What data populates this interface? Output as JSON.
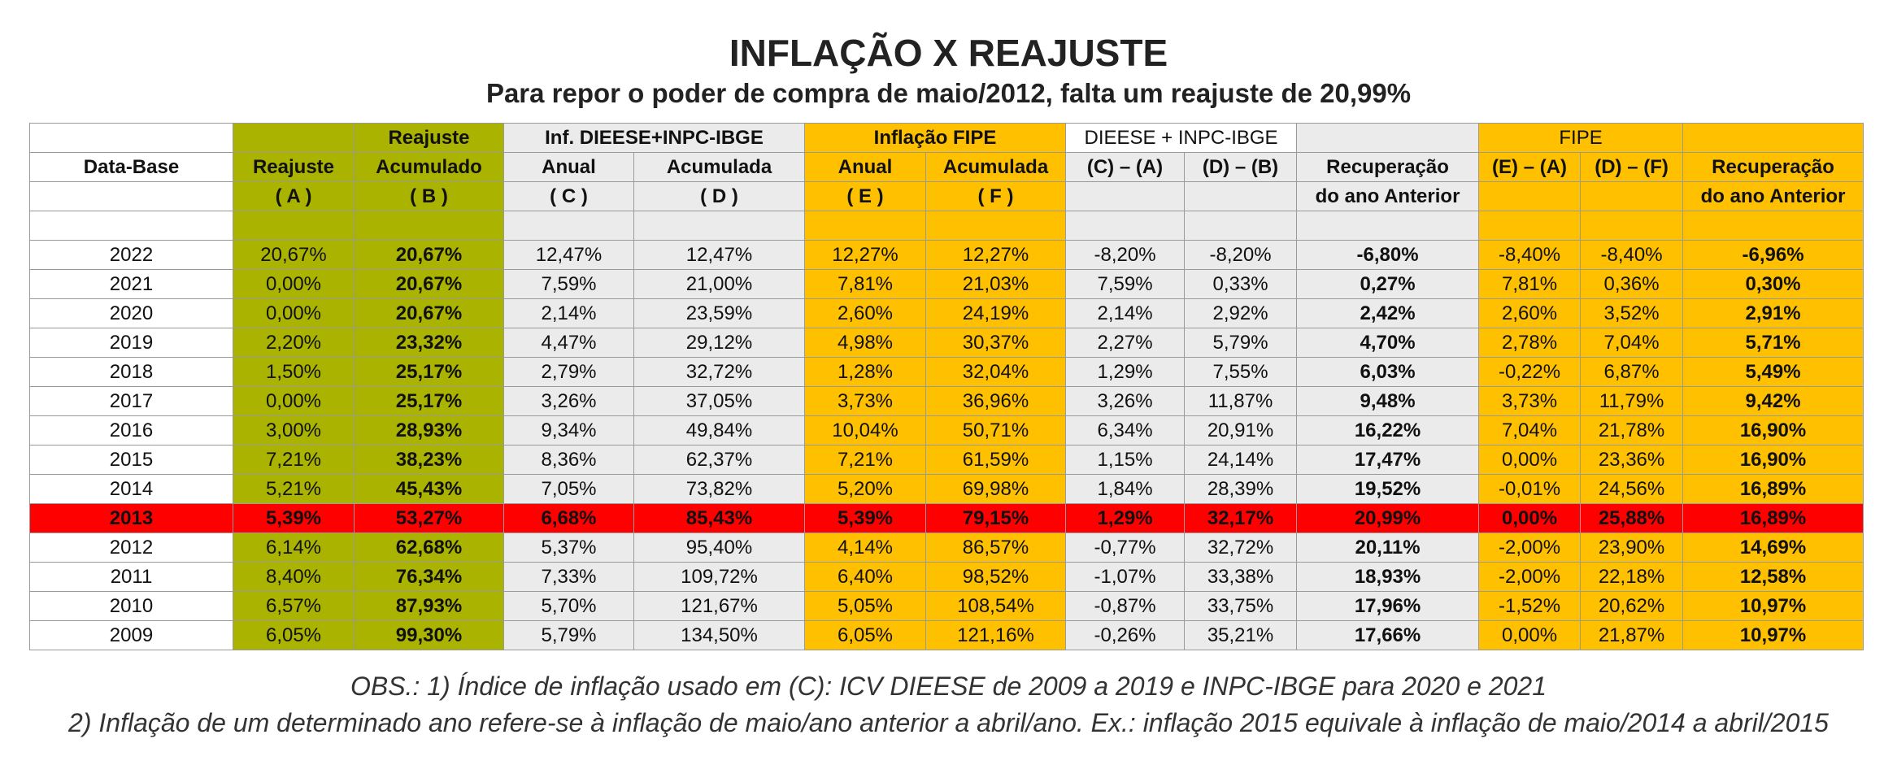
{
  "title": "INFLAÇÃO X REAJUSTE",
  "subtitle": "Para repor o poder de compra de maio/2012, falta um reajuste de 20,99%",
  "header": {
    "group": {
      "reajuste": "Reajuste",
      "dieese": "Inf. DIEESE+INPC-IBGE",
      "fipe": "Inflação FIPE",
      "dieese_diff": "DIEESE + INPC-IBGE",
      "fipe_diff": "FIPE"
    },
    "row2": [
      "Data-Base",
      "Reajuste",
      "Acumulado",
      "Anual",
      "Acumulada",
      "Anual",
      "Acumulada",
      "(C) – (A)",
      "(D) – (B)",
      "Recuperação",
      "(E) – (A)",
      "(D) – (F)",
      "Recuperação"
    ],
    "row3": [
      "( A )",
      "( B )",
      "( C )",
      "( D )",
      "( E )",
      "( F )",
      "do ano Anterior",
      "do ano Anterior"
    ]
  },
  "rows": [
    [
      "2022",
      "20,67%",
      "20,67%",
      "12,47%",
      "12,47%",
      "12,27%",
      "12,27%",
      "-8,20%",
      "-8,20%",
      "-6,80%",
      "-8,40%",
      "-8,40%",
      "-6,96%"
    ],
    [
      "2021",
      "0,00%",
      "20,67%",
      "7,59%",
      "21,00%",
      "7,81%",
      "21,03%",
      "7,59%",
      "0,33%",
      "0,27%",
      "7,81%",
      "0,36%",
      "0,30%"
    ],
    [
      "2020",
      "0,00%",
      "20,67%",
      "2,14%",
      "23,59%",
      "2,60%",
      "24,19%",
      "2,14%",
      "2,92%",
      "2,42%",
      "2,60%",
      "3,52%",
      "2,91%"
    ],
    [
      "2019",
      "2,20%",
      "23,32%",
      "4,47%",
      "29,12%",
      "4,98%",
      "30,37%",
      "2,27%",
      "5,79%",
      "4,70%",
      "2,78%",
      "7,04%",
      "5,71%"
    ],
    [
      "2018",
      "1,50%",
      "25,17%",
      "2,79%",
      "32,72%",
      "1,28%",
      "32,04%",
      "1,29%",
      "7,55%",
      "6,03%",
      "-0,22%",
      "6,87%",
      "5,49%"
    ],
    [
      "2017",
      "0,00%",
      "25,17%",
      "3,26%",
      "37,05%",
      "3,73%",
      "36,96%",
      "3,26%",
      "11,87%",
      "9,48%",
      "3,73%",
      "11,79%",
      "9,42%"
    ],
    [
      "2016",
      "3,00%",
      "28,93%",
      "9,34%",
      "49,84%",
      "10,04%",
      "50,71%",
      "6,34%",
      "20,91%",
      "16,22%",
      "7,04%",
      "21,78%",
      "16,90%"
    ],
    [
      "2015",
      "7,21%",
      "38,23%",
      "8,36%",
      "62,37%",
      "7,21%",
      "61,59%",
      "1,15%",
      "24,14%",
      "17,47%",
      "0,00%",
      "23,36%",
      "16,90%"
    ],
    [
      "2014",
      "5,21%",
      "45,43%",
      "7,05%",
      "73,82%",
      "5,20%",
      "69,98%",
      "1,84%",
      "28,39%",
      "19,52%",
      "-0,01%",
      "24,56%",
      "16,89%"
    ],
    [
      "2013",
      "5,39%",
      "53,27%",
      "6,68%",
      "85,43%",
      "5,39%",
      "79,15%",
      "1,29%",
      "32,17%",
      "20,99%",
      "0,00%",
      "25,88%",
      "16,89%"
    ],
    [
      "2012",
      "6,14%",
      "62,68%",
      "5,37%",
      "95,40%",
      "4,14%",
      "86,57%",
      "-0,77%",
      "32,72%",
      "20,11%",
      "-2,00%",
      "23,90%",
      "14,69%"
    ],
    [
      "2011",
      "8,40%",
      "76,34%",
      "7,33%",
      "109,72%",
      "6,40%",
      "98,52%",
      "-1,07%",
      "33,38%",
      "18,93%",
      "-2,00%",
      "22,18%",
      "12,58%"
    ],
    [
      "2010",
      "6,57%",
      "87,93%",
      "5,70%",
      "121,67%",
      "5,05%",
      "108,54%",
      "-0,87%",
      "33,75%",
      "17,96%",
      "-1,52%",
      "20,62%",
      "10,97%"
    ],
    [
      "2009",
      "6,05%",
      "99,30%",
      "5,79%",
      "134,50%",
      "6,05%",
      "121,16%",
      "-0,26%",
      "35,21%",
      "17,66%",
      "0,00%",
      "21,87%",
      "10,97%"
    ]
  ],
  "notes": [
    "OBS.: 1) Índice de inflação usado em (C): ICV DIEESE de 2009 a 2019 e INPC-IBGE para 2020 e 2021",
    "2) Inflação de um determinado ano refere-se à inflação de maio/ano anterior a abril/ano. Ex.: inflação 2015 equivale à inflação de maio/2014 a abril/2015"
  ]
}
